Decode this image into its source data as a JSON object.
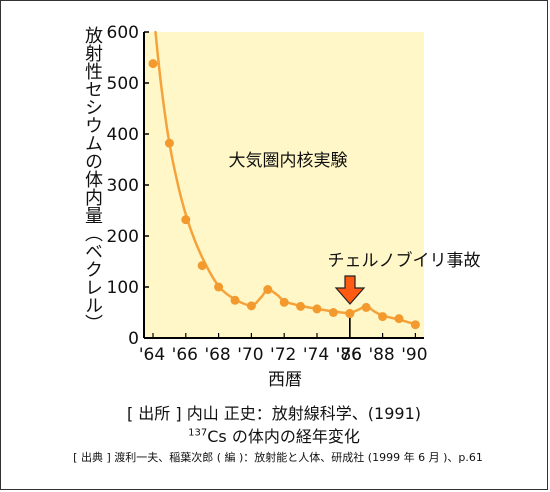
{
  "chart_data": {
    "type": "line",
    "ylabel": "放射性セシウムの体内量（ベクレル）",
    "xlabel": "西暦",
    "ylim": [
      0,
      600
    ],
    "y_ticks": [
      "0",
      "100",
      "200",
      "300",
      "400",
      "500",
      "600"
    ],
    "x_tick_labels": [
      "'64",
      "'66",
      "'68",
      "'70",
      "'72",
      "'74",
      "'76",
      "'86",
      "'88",
      "'90"
    ],
    "axis_break": "'76–'86",
    "annotation_nuclear_tests": "大気圏内核実験",
    "annotation_chernobyl": "チェルノブイリ事故",
    "points": [
      {
        "year": 1964,
        "value": 538
      },
      {
        "year": 1965,
        "value": 382
      },
      {
        "year": 1966,
        "value": 232
      },
      {
        "year": 1967,
        "value": 142
      },
      {
        "year": 1968,
        "value": 100
      },
      {
        "year": 1969,
        "value": 74
      },
      {
        "year": 1970,
        "value": 63
      },
      {
        "year": 1971,
        "value": 95
      },
      {
        "year": 1972,
        "value": 70
      },
      {
        "year": 1973,
        "value": 62
      },
      {
        "year": 1974,
        "value": 57
      },
      {
        "year": 1975,
        "value": 50
      },
      {
        "year": 1976,
        "value": 48
      },
      {
        "year": 1986,
        "value": 48
      },
      {
        "year": 1987,
        "value": 60
      },
      {
        "year": 1988,
        "value": 42
      },
      {
        "year": 1989,
        "value": 38
      },
      {
        "year": 1990,
        "value": 26
      }
    ],
    "curve": [
      {
        "year": 1964.15,
        "value": 600
      },
      {
        "year": 1964.5,
        "value": 495
      },
      {
        "year": 1965.0,
        "value": 382
      },
      {
        "year": 1965.6,
        "value": 290
      },
      {
        "year": 1966.2,
        "value": 222
      },
      {
        "year": 1967.0,
        "value": 158
      },
      {
        "year": 1968.0,
        "value": 102
      },
      {
        "year": 1969.0,
        "value": 76
      },
      {
        "year": 1970.0,
        "value": 64
      },
      {
        "year": 1970.6,
        "value": 80
      },
      {
        "year": 1971.0,
        "value": 95
      },
      {
        "year": 1971.6,
        "value": 84
      },
      {
        "year": 1972.0,
        "value": 72
      },
      {
        "year": 1973.0,
        "value": 63
      },
      {
        "year": 1974.0,
        "value": 57
      },
      {
        "year": 1975.0,
        "value": 52
      },
      {
        "year": 1976.0,
        "value": 48
      },
      {
        "year": 1986.0,
        "value": 48
      },
      {
        "year": 1986.5,
        "value": 55
      },
      {
        "year": 1987.0,
        "value": 62
      },
      {
        "year": 1987.5,
        "value": 52
      },
      {
        "year": 1988.0,
        "value": 44
      },
      {
        "year": 1989.0,
        "value": 36
      },
      {
        "year": 1990.0,
        "value": 27
      }
    ],
    "colors": {
      "background": "#fff7c8",
      "line": "#f5a23a",
      "point": "#f39a2e",
      "arrow": "#ff5a12"
    }
  },
  "captions": {
    "source_main": "[ 出所 ] 内山 正史：放射線科学、(1991)",
    "isotope_mass": "137",
    "title_line": "Cs の体内の経年変化",
    "source_secondary": "[ 出典 ] 渡利一夫、稲葉次郎 ( 編 )：放射能と人体、研成社 (1999 年 6 月 )、p.61"
  }
}
